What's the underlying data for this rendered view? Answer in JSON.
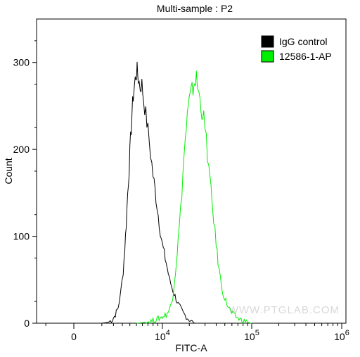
{
  "chart_data": {
    "type": "line",
    "title": "Multi-sample : P2",
    "xlabel": "FITC-A",
    "ylabel": "Count",
    "x_scale": "biexponential",
    "ylim": [
      0,
      350
    ],
    "y_ticks": [
      {
        "value": 0,
        "label": "0"
      },
      {
        "value": 100,
        "label": "100"
      },
      {
        "value": 200,
        "label": "200"
      },
      {
        "value": 300,
        "label": "300"
      }
    ],
    "x_ticks": [
      {
        "value": 0,
        "label": "0"
      },
      {
        "value": 10000,
        "label": "10",
        "exp": "4"
      },
      {
        "value": 100000,
        "label": "10",
        "exp": "5"
      },
      {
        "value": 1000000,
        "label": "10",
        "exp": "6"
      }
    ],
    "legend_position": "top-right",
    "grid": false,
    "watermark": "WWW.PTGLAB.COM",
    "series": [
      {
        "name": "IgG control",
        "color": "#000000",
        "points": [
          [
            1000,
            0
          ],
          [
            1500,
            1
          ],
          [
            1900,
            4
          ],
          [
            2200,
            10
          ],
          [
            2500,
            18
          ],
          [
            2800,
            35
          ],
          [
            3100,
            60
          ],
          [
            3300,
            85
          ],
          [
            3500,
            115
          ],
          [
            3700,
            150
          ],
          [
            3900,
            180
          ],
          [
            4100,
            210
          ],
          [
            4300,
            240
          ],
          [
            4500,
            262
          ],
          [
            4700,
            275
          ],
          [
            4900,
            285
          ],
          [
            5100,
            290
          ],
          [
            5300,
            282
          ],
          [
            5600,
            272
          ],
          [
            5900,
            275
          ],
          [
            6200,
            258
          ],
          [
            6600,
            240
          ],
          [
            7000,
            222
          ],
          [
            7500,
            196
          ],
          [
            8000,
            170
          ],
          [
            8600,
            145
          ],
          [
            9300,
            115
          ],
          [
            10000,
            90
          ],
          [
            11000,
            70
          ],
          [
            12000,
            50
          ],
          [
            13500,
            34
          ],
          [
            15000,
            22
          ],
          [
            17000,
            12
          ],
          [
            19000,
            6
          ],
          [
            21000,
            2
          ],
          [
            23000,
            0
          ]
        ]
      },
      {
        "name": "12586-1-AP",
        "color": "#00ee00",
        "points": [
          [
            5000,
            0
          ],
          [
            6500,
            1
          ],
          [
            8000,
            3
          ],
          [
            9500,
            6
          ],
          [
            11000,
            10
          ],
          [
            12000,
            15
          ],
          [
            13000,
            30
          ],
          [
            14000,
            60
          ],
          [
            15000,
            95
          ],
          [
            16000,
            130
          ],
          [
            17000,
            175
          ],
          [
            18000,
            210
          ],
          [
            19000,
            238
          ],
          [
            20000,
            255
          ],
          [
            21000,
            265
          ],
          [
            22000,
            270
          ],
          [
            23000,
            278
          ],
          [
            24000,
            282
          ],
          [
            25000,
            270
          ],
          [
            27000,
            250
          ],
          [
            29000,
            235
          ],
          [
            31000,
            210
          ],
          [
            33000,
            180
          ],
          [
            35000,
            150
          ],
          [
            37500,
            120
          ],
          [
            40000,
            90
          ],
          [
            43000,
            62
          ],
          [
            46000,
            42
          ],
          [
            50000,
            28
          ],
          [
            55000,
            18
          ],
          [
            60000,
            12
          ],
          [
            65000,
            8
          ],
          [
            72000,
            5
          ],
          [
            80000,
            3
          ],
          [
            90000,
            1
          ],
          [
            100000,
            0
          ]
        ]
      }
    ]
  }
}
